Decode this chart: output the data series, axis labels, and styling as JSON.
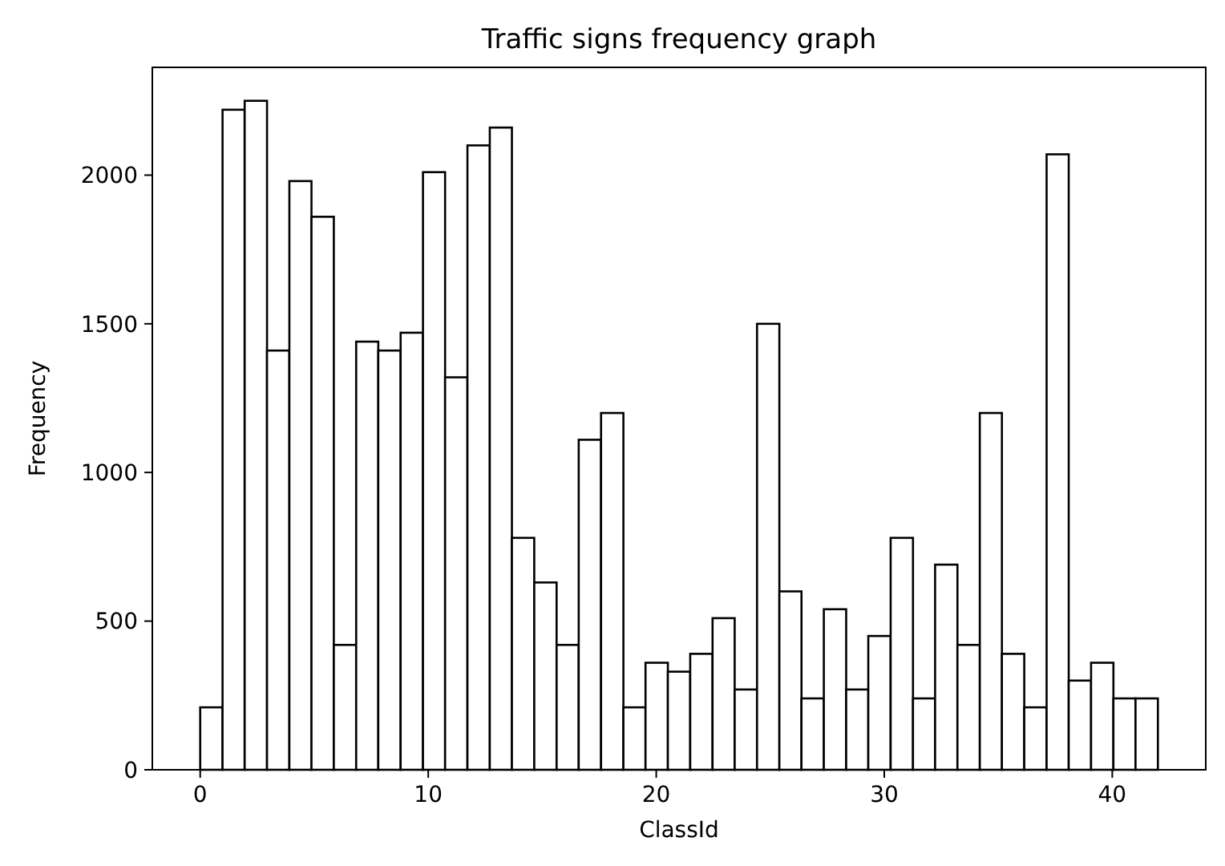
{
  "chart_data": {
    "type": "histogram",
    "title": "Traffic signs frequency graph",
    "xlabel": "ClassId",
    "ylabel": "Frequency",
    "bins": [
      0,
      0.98,
      1.95,
      2.93,
      3.91,
      4.88,
      5.86,
      6.84,
      7.81,
      8.79,
      9.77,
      10.74,
      11.72,
      12.7,
      13.67,
      14.65,
      15.63,
      16.6,
      17.58,
      18.56,
      19.53,
      20.51,
      21.49,
      22.47,
      23.44,
      24.42,
      25.4,
      26.37,
      27.35,
      28.33,
      29.3,
      30.28,
      31.26,
      32.23,
      33.21,
      34.19,
      35.16,
      36.14,
      37.12,
      38.09,
      39.07,
      40.05,
      41.02,
      42
    ],
    "values": [
      210,
      2220,
      2250,
      1410,
      1980,
      1860,
      420,
      1440,
      1410,
      1470,
      2010,
      1320,
      2100,
      2160,
      780,
      630,
      420,
      1110,
      1200,
      210,
      360,
      330,
      390,
      510,
      270,
      1500,
      600,
      240,
      540,
      270,
      450,
      780,
      240,
      690,
      420,
      1200,
      390,
      210,
      2070,
      300,
      360,
      240,
      240
    ],
    "color": "#ffffff",
    "xlim": [
      -2.1,
      44.1
    ],
    "ylim": [
      0,
      2362.5
    ],
    "xticks": [
      0,
      10,
      20,
      30,
      40
    ],
    "yticks": [
      0,
      500,
      1000,
      1500,
      2000
    ],
    "grid": false
  }
}
